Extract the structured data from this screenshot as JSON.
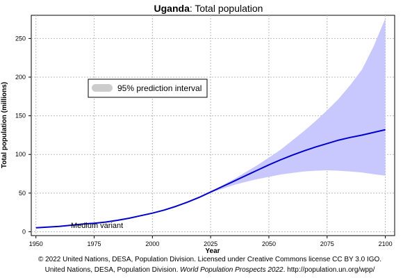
{
  "chart_data": {
    "type": "line",
    "title": {
      "country": "Uganda",
      "rest": ": Total population"
    },
    "xlabel": "Year",
    "ylabel": "Total population (millions)",
    "xlim": [
      1948,
      2104
    ],
    "ylim": [
      -5,
      280
    ],
    "x_ticks": [
      1950,
      1975,
      2000,
      2025,
      2050,
      2075,
      2100
    ],
    "y_ticks": [
      0,
      50,
      100,
      150,
      200,
      250
    ],
    "grid": true,
    "legend": {
      "placement": "upper-left",
      "entries": [
        "95% prediction interval"
      ]
    },
    "series_label": "Medium variant",
    "colors": {
      "median": "#0000cc",
      "interval": "#c8c8ff",
      "legend_swatch": "#cccccc",
      "grid": "#bbbbbb"
    },
    "series": [
      {
        "name": "Medium variant",
        "x": [
          1950,
          1955,
          1960,
          1965,
          1970,
          1975,
          1980,
          1985,
          1990,
          1995,
          2000,
          2005,
          2010,
          2015,
          2020,
          2025,
          2030,
          2035,
          2040,
          2045,
          2050,
          2055,
          2060,
          2065,
          2070,
          2075,
          2080,
          2085,
          2090,
          2095,
          2100
        ],
        "y": [
          5.2,
          6.0,
          7.0,
          8.4,
          9.9,
          11.0,
          12.5,
          14.8,
          17.5,
          20.8,
          24.0,
          28.0,
          32.8,
          38.2,
          44.4,
          51.4,
          58.4,
          65.4,
          72.5,
          79.5,
          86.5,
          93.0,
          99.0,
          104.5,
          109.5,
          114.0,
          118.5,
          122.0,
          125.0,
          128.5,
          132.0
        ]
      },
      {
        "name": "95% prediction interval",
        "x": [
          2022,
          2025,
          2030,
          2035,
          2040,
          2045,
          2050,
          2055,
          2060,
          2065,
          2070,
          2075,
          2080,
          2085,
          2090,
          2095,
          2100
        ],
        "lower": [
          47.5,
          50.5,
          55.5,
          60.5,
          64.5,
          68.0,
          71.0,
          74.0,
          76.0,
          78.0,
          79.0,
          79.5,
          79.0,
          78.0,
          76.5,
          74.5,
          72.5
        ],
        "upper": [
          47.5,
          52.0,
          60.0,
          68.0,
          77.0,
          86.0,
          96.0,
          106.0,
          118.0,
          130.0,
          143.0,
          157.0,
          172.0,
          190.0,
          210.0,
          240.0,
          276.0
        ]
      }
    ]
  },
  "footer": {
    "line1": "© 2022 United Nations, DESA, Population Division. Licensed under Creative Commons license CC BY 3.0 IGO.",
    "line2_a": "United Nations, DESA, Population Division. ",
    "line2_b": "World Population Prospects 2022",
    "line2_c": ". http://population.un.org/wpp/"
  }
}
